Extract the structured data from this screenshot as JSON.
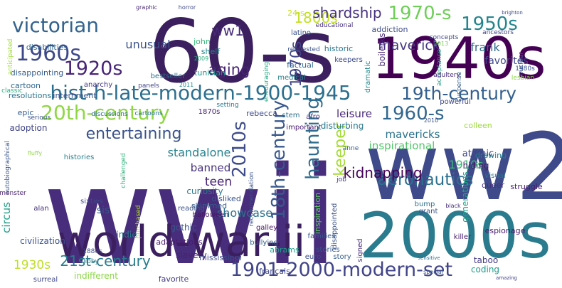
{
  "words": [
    {
      "text": "wwii",
      "color": "#472d7b"
    },
    {
      "text": "60-s",
      "color": "#3b1f5e"
    },
    {
      "text": "ww2",
      "color": "#3e4a89"
    },
    {
      "text": "2000s",
      "color": "#2a7b8e"
    },
    {
      "text": "1940s",
      "color": "#440154"
    },
    {
      "text": "world-war-ii",
      "color": "#3b1f5e"
    },
    {
      "text": "hist-h-late-modern-1900-1945",
      "color": "#2d6f8e"
    },
    {
      "text": "20th-century",
      "color": "#8fd744"
    },
    {
      "text": "19th-century",
      "color": "#35608d"
    },
    {
      "text": "1901-2000-modern-set",
      "color": "#414487"
    },
    {
      "text": "victorian",
      "color": "#33638d"
    },
    {
      "text": "1960s",
      "color": "#3e4989"
    },
    {
      "text": "1920s",
      "color": "#482576"
    },
    {
      "text": "1950s",
      "color": "#25858e"
    },
    {
      "text": "1970-s",
      "color": "#6ece58"
    },
    {
      "text": "1960-s",
      "color": "#31678e"
    },
    {
      "text": "2010s",
      "color": "#3e4c8a"
    },
    {
      "text": "18th-century",
      "color": "#38588c"
    },
    {
      "text": "haunting",
      "color": "#2f6c8e"
    },
    {
      "text": "keeper",
      "color": "#a5db36"
    },
    {
      "text": "1970s",
      "color": "#404688"
    },
    {
      "text": "aeronautics",
      "color": "#2d708e"
    },
    {
      "text": "entertaining",
      "color": "#3a538b"
    },
    {
      "text": "aging",
      "color": "#482475"
    },
    {
      "text": "1800s",
      "color": "#c2df23"
    },
    {
      "text": "shardship",
      "color": "#46307e"
    },
    {
      "text": "maverick",
      "color": "#443983"
    },
    {
      "text": "ww1",
      "color": "#472c7a"
    },
    {
      "text": "kidnapping",
      "color": "#440256"
    },
    {
      "text": "21st-century",
      "color": "#287c8e"
    },
    {
      "text": "1930s",
      "color": "#bddf26"
    },
    {
      "text": "frank",
      "color": "#31688e"
    },
    {
      "text": "favorites",
      "color": "#3f4889"
    },
    {
      "text": "unusual",
      "color": "#3b528b"
    },
    {
      "text": "mavericks",
      "color": "#2c728e"
    },
    {
      "text": "standalone",
      "color": "#26828e"
    },
    {
      "text": "teen",
      "color": "#482374"
    },
    {
      "text": "inspirational",
      "color": "#52c569"
    },
    {
      "text": "1910s",
      "color": "#38b977"
    },
    {
      "text": "leisure",
      "color": "#482677"
    },
    {
      "text": "banned",
      "color": "#46327e"
    },
    {
      "text": "circus",
      "color": "#1fa088"
    },
    {
      "text": "sis",
      "color": "#39568c"
    },
    {
      "text": "showcase",
      "color": "#2d718e"
    },
    {
      "text": "disappointing",
      "color": "#365d8d"
    },
    {
      "text": "atomic",
      "color": "#404588"
    },
    {
      "text": "hiding",
      "color": "#481a6c"
    },
    {
      "text": "espionage",
      "color": "#48186a"
    },
    {
      "text": "cartoon",
      "color": "#31688e"
    },
    {
      "text": "adoption",
      "color": "#404688"
    },
    {
      "text": "epic",
      "color": "#355f8d"
    },
    {
      "text": "civilization",
      "color": "#3b528b"
    },
    {
      "text": "indie",
      "color": "#2a788e"
    },
    {
      "text": "adaptations",
      "color": "#481b6d"
    },
    {
      "text": "gothic",
      "color": "#3a548c"
    },
    {
      "text": "slavery",
      "color": "#482173"
    },
    {
      "text": "indifferent",
      "color": "#8bd646"
    },
    {
      "text": "favorite",
      "color": "#443a83"
    },
    {
      "text": "français",
      "color": "#3e4989"
    },
    {
      "text": "coding",
      "color": "#1e9b8a"
    },
    {
      "text": "taboo",
      "color": "#443983"
    },
    {
      "text": "abrams",
      "color": "#1f9e89"
    },
    {
      "text": "mississippi",
      "color": "#3e4c8a"
    },
    {
      "text": "curiosity",
      "color": "#2a788e"
    },
    {
      "text": "disliked",
      "color": "#3a538b"
    },
    {
      "text": "skimmed",
      "color": "#365c8d"
    },
    {
      "text": "rebecca",
      "color": "#3e4989"
    },
    {
      "text": "disturbing",
      "color": "#2a778e"
    },
    {
      "text": "dramatic",
      "color": "#23898e"
    },
    {
      "text": "boilerks",
      "color": "#482878"
    },
    {
      "text": "addiction",
      "color": "#3e4c8a"
    },
    {
      "text": "latino",
      "color": "#3b528b"
    },
    {
      "text": "factual",
      "color": "#31688e"
    },
    {
      "text": "john",
      "color": "#35b779"
    },
    {
      "text": "shelf",
      "color": "#25848e"
    },
    {
      "text": "tunisian",
      "color": "#21918c"
    },
    {
      "text": "medical",
      "color": "#27808e"
    },
    {
      "text": "historic",
      "color": "#2b758e"
    },
    {
      "text": "keepers",
      "color": "#3d4d8a"
    },
    {
      "text": "disabilities",
      "color": "#31688e"
    },
    {
      "text": "anarchy",
      "color": "#443983"
    },
    {
      "text": "resolutions",
      "color": "#2c728e"
    },
    {
      "text": "internment",
      "color": "#3b528b"
    },
    {
      "text": "24-s",
      "color": "#c8e020"
    },
    {
      "text": "stem",
      "color": "#2d708e"
    },
    {
      "text": "afro",
      "color": "#46337f"
    },
    {
      "text": "important",
      "color": "#481c6e"
    },
    {
      "text": "generations",
      "color": "#20a486"
    },
    {
      "text": "colleen",
      "color": "#9bd93c"
    },
    {
      "text": "powerful",
      "color": "#3f4788"
    },
    {
      "text": "inspiration",
      "color": "#5ec962"
    },
    {
      "text": "disappointed",
      "color": "#3b528b"
    },
    {
      "text": "families",
      "color": "#38588c"
    },
    {
      "text": "stories",
      "color": "#38598c"
    },
    {
      "text": "signed",
      "color": "#472c7a"
    },
    {
      "text": "story",
      "color": "#365d8d"
    },
    {
      "text": "euro",
      "color": "#3d4e8a"
    },
    {
      "text": "killer",
      "color": "#481b6d"
    },
    {
      "text": "grant",
      "color": "#39568c"
    },
    {
      "text": "bump",
      "color": "#2e6e8e"
    },
    {
      "text": "queer",
      "color": "#46307e"
    },
    {
      "text": "visual",
      "color": "#2c738e"
    },
    {
      "text": "drawing",
      "color": "#2a788e"
    },
    {
      "text": "struggle",
      "color": "#482071"
    },
    {
      "text": "halloween",
      "color": "#481668"
    },
    {
      "text": "recommendation",
      "color": "#3a538b"
    },
    {
      "text": "bullying",
      "color": "#34618d"
    },
    {
      "text": "galley",
      "color": "#471365"
    },
    {
      "text": "reading",
      "color": "#3b528b"
    },
    {
      "text": "sixties",
      "color": "#3f4889"
    },
    {
      "text": "cartoons",
      "color": "#2c738e"
    },
    {
      "text": "discussions",
      "color": "#2f6c8e"
    },
    {
      "text": "classic",
      "color": "#27ad81"
    },
    {
      "text": "serious",
      "color": "#3b528b"
    },
    {
      "text": "1870s",
      "color": "#482173"
    },
    {
      "text": "setting",
      "color": "#2a788e"
    },
    {
      "text": "panels",
      "color": "#414487"
    },
    {
      "text": "bestseller",
      "color": "#2d708e"
    },
    {
      "text": "anticipated",
      "color": "#9fda3a"
    },
    {
      "text": "encouraging",
      "color": "#25ab82"
    },
    {
      "text": "requested",
      "color": "#3b528b"
    },
    {
      "text": "educational",
      "color": "#46307e"
    },
    {
      "text": "concepts",
      "color": "#3f4788"
    },
    {
      "text": "ancestors",
      "color": "#414487"
    },
    {
      "text": "acceptance",
      "color": "#20a386"
    },
    {
      "text": "suspense",
      "color": "#355f8d"
    },
    {
      "text": "adultery",
      "color": "#472a7a"
    },
    {
      "text": "nuclear",
      "color": "#39558c"
    },
    {
      "text": "lesbian",
      "color": "#8bd646"
    },
    {
      "text": "1980s",
      "color": "#3b528b"
    },
    {
      "text": "brighton",
      "color": "#3e4c8a"
    },
    {
      "text": "histories",
      "color": "#26828e"
    },
    {
      "text": "autobiographical",
      "color": "#39558c"
    },
    {
      "text": "monster",
      "color": "#481f70"
    },
    {
      "text": "alan",
      "color": "#46307e"
    },
    {
      "text": "1880s",
      "color": "#3e4a89"
    },
    {
      "text": "libby",
      "color": "#287d8e"
    },
    {
      "text": "surreal",
      "color": "#3f4889"
    },
    {
      "text": "graphic",
      "color": "#482878"
    },
    {
      "text": "horror",
      "color": "#3e4989"
    },
    {
      "text": "purchased",
      "color": "#b5de2b"
    },
    {
      "text": "challenged",
      "color": "#2fb47c"
    },
    {
      "text": "2009",
      "color": "#29af7f"
    },
    {
      "text": "2011",
      "color": "#228d8d"
    },
    {
      "text": "2010",
      "color": "#3b528b"
    },
    {
      "text": "2013",
      "color": "#7ad151"
    },
    {
      "text": "job",
      "color": "#443983"
    },
    {
      "text": "anne",
      "color": "#39568c"
    },
    {
      "text": "fluffy",
      "color": "#90d743"
    },
    {
      "text": "sensitive",
      "color": "#2d708e"
    },
    {
      "text": "black",
      "color": "#472c7a"
    },
    {
      "text": "special",
      "color": "#38598c"
    },
    {
      "text": "amazing",
      "color": "#414487"
    }
  ]
}
